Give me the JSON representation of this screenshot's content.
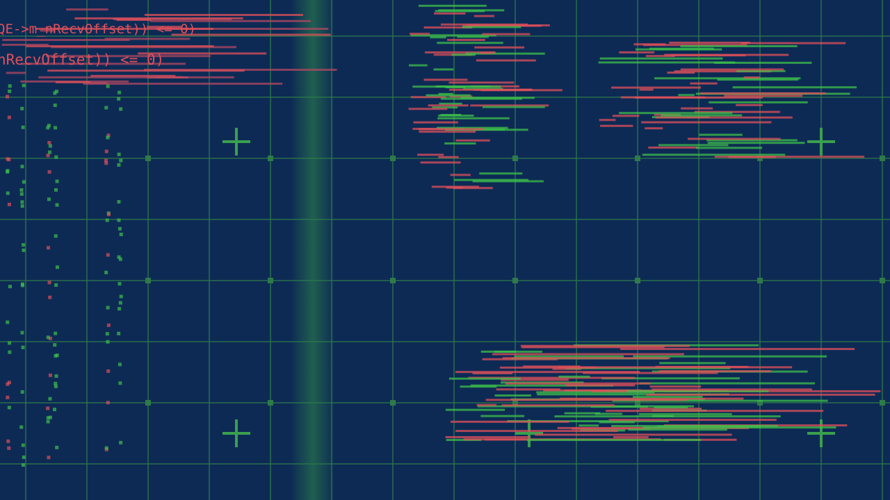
{
  "code_lines": [
    "QE->m_nRecvOffset)) <= 0)",
    "nRecvOffset)) <= 0)"
  ]
}
